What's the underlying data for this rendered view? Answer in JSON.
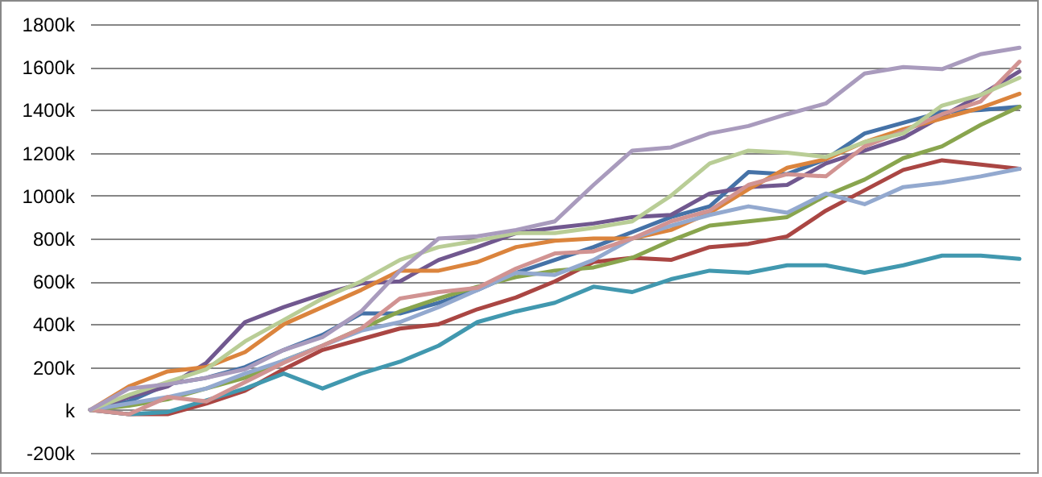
{
  "chart_data": {
    "type": "line",
    "categories": [
      null,
      null,
      null,
      null,
      null,
      null,
      null,
      null,
      null,
      null,
      null,
      null,
      null,
      null,
      null,
      null,
      null,
      null,
      null,
      null,
      null,
      null,
      null,
      null,
      null
    ],
    "ylim": [
      -200,
      1800
    ],
    "yticks": [
      {
        "value": -200,
        "label": "-200k"
      },
      {
        "value": 0,
        "label": "k"
      },
      {
        "value": 200,
        "label": "200k"
      },
      {
        "value": 400,
        "label": "400k"
      },
      {
        "value": 600,
        "label": "600k"
      },
      {
        "value": 800,
        "label": "800k"
      },
      {
        "value": 1000,
        "label": "1000k"
      },
      {
        "value": 1200,
        "label": "1200k"
      },
      {
        "value": 1400,
        "label": "1400k"
      },
      {
        "value": 1600,
        "label": "1600k"
      },
      {
        "value": 1800,
        "label": "1800k"
      }
    ],
    "grid": "y",
    "marker": "none",
    "line_style": "solid",
    "series": [
      {
        "color": "#4572a7",
        "values": [
          0,
          40,
          120,
          150,
          200,
          280,
          350,
          450,
          450,
          500,
          560,
          640,
          700,
          760,
          830,
          900,
          950,
          1110,
          1100,
          1170,
          1290,
          1340,
          1390,
          1400,
          1415
        ]
      },
      {
        "color": "#aa4643",
        "values": [
          0,
          -20,
          -20,
          30,
          90,
          190,
          280,
          330,
          380,
          400,
          470,
          525,
          600,
          690,
          710,
          700,
          760,
          775,
          810,
          930,
          1025,
          1120,
          1165,
          1145,
          1125
        ]
      },
      {
        "color": "#89a54e",
        "values": [
          0,
          20,
          50,
          100,
          150,
          230,
          300,
          380,
          460,
          520,
          575,
          620,
          650,
          665,
          710,
          790,
          860,
          880,
          900,
          1000,
          1075,
          1175,
          1230,
          1330,
          1415
        ]
      },
      {
        "color": "#71588f",
        "values": [
          0,
          60,
          110,
          220,
          410,
          480,
          540,
          590,
          600,
          700,
          760,
          825,
          850,
          870,
          900,
          910,
          1010,
          1040,
          1050,
          1150,
          1210,
          1270,
          1370,
          1470,
          1580
        ]
      },
      {
        "color": "#4198af",
        "values": [
          0,
          -20,
          -10,
          45,
          100,
          170,
          100,
          170,
          225,
          300,
          410,
          460,
          500,
          575,
          550,
          610,
          650,
          640,
          675,
          675,
          640,
          675,
          720,
          720,
          705
        ]
      },
      {
        "color": "#db843d",
        "values": [
          0,
          110,
          180,
          200,
          270,
          400,
          480,
          560,
          650,
          650,
          690,
          760,
          790,
          800,
          800,
          840,
          920,
          1030,
          1130,
          1170,
          1250,
          1310,
          1360,
          1410,
          1475
        ]
      },
      {
        "color": "#93a9cf",
        "values": [
          0,
          30,
          60,
          100,
          170,
          230,
          300,
          370,
          410,
          480,
          560,
          640,
          630,
          700,
          800,
          860,
          910,
          950,
          920,
          1010,
          960,
          1040,
          1060,
          1090,
          1125
        ]
      },
      {
        "color": "#d19392",
        "values": [
          0,
          -20,
          60,
          40,
          130,
          220,
          300,
          380,
          520,
          550,
          570,
          660,
          730,
          740,
          800,
          880,
          930,
          1050,
          1100,
          1090,
          1230,
          1300,
          1380,
          1440,
          1625
        ]
      },
      {
        "color": "#b9cd96",
        "values": [
          0,
          70,
          130,
          190,
          320,
          420,
          520,
          600,
          700,
          760,
          790,
          825,
          825,
          850,
          880,
          1000,
          1150,
          1210,
          1200,
          1180,
          1250,
          1290,
          1420,
          1470,
          1550
        ]
      },
      {
        "color": "#a99bbd",
        "values": [
          0,
          100,
          120,
          150,
          190,
          280,
          340,
          460,
          650,
          800,
          810,
          840,
          880,
          1050,
          1210,
          1225,
          1290,
          1325,
          1380,
          1430,
          1570,
          1600,
          1590,
          1660,
          1690
        ]
      }
    ]
  }
}
